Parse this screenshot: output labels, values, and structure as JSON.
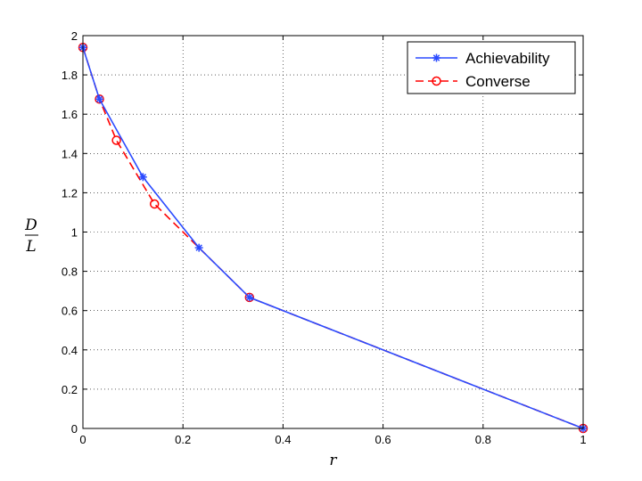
{
  "chart_data": {
    "type": "line",
    "title": "",
    "xlabel": "r",
    "ylabel_num": "D",
    "ylabel_den": "L",
    "xlim": [
      0,
      1
    ],
    "ylim": [
      0,
      2
    ],
    "xticks": [
      0,
      0.2,
      0.4,
      0.6,
      0.8,
      1
    ],
    "xtick_labels": [
      "0",
      "0.2",
      "0.4",
      "0.6",
      "0.8",
      "1"
    ],
    "yticks": [
      0,
      0.2,
      0.4,
      0.6,
      0.8,
      1,
      1.2,
      1.4,
      1.6,
      1.8,
      2
    ],
    "ytick_labels": [
      "0",
      "0.2",
      "0.4",
      "0.6",
      "0.8",
      "1",
      "1.2",
      "1.4",
      "1.6",
      "1.8",
      "2"
    ],
    "grid": true,
    "legend_position": "top-right",
    "series": [
      {
        "name": "Achievability",
        "color": "#2b4bff",
        "line_style": "solid",
        "marker": "asterisk",
        "x": [
          0,
          0.033,
          0.12,
          0.232,
          0.333,
          1
        ],
        "y": [
          1.94,
          1.677,
          1.28,
          0.92,
          0.667,
          0
        ]
      },
      {
        "name": "Converse",
        "color": "#ff0000",
        "line_style": "dashed",
        "marker": "circle",
        "x": [
          0,
          0.033,
          0.067,
          0.143,
          0.333,
          1
        ],
        "y": [
          1.94,
          1.677,
          1.467,
          1.143,
          0.667,
          0
        ]
      }
    ]
  }
}
